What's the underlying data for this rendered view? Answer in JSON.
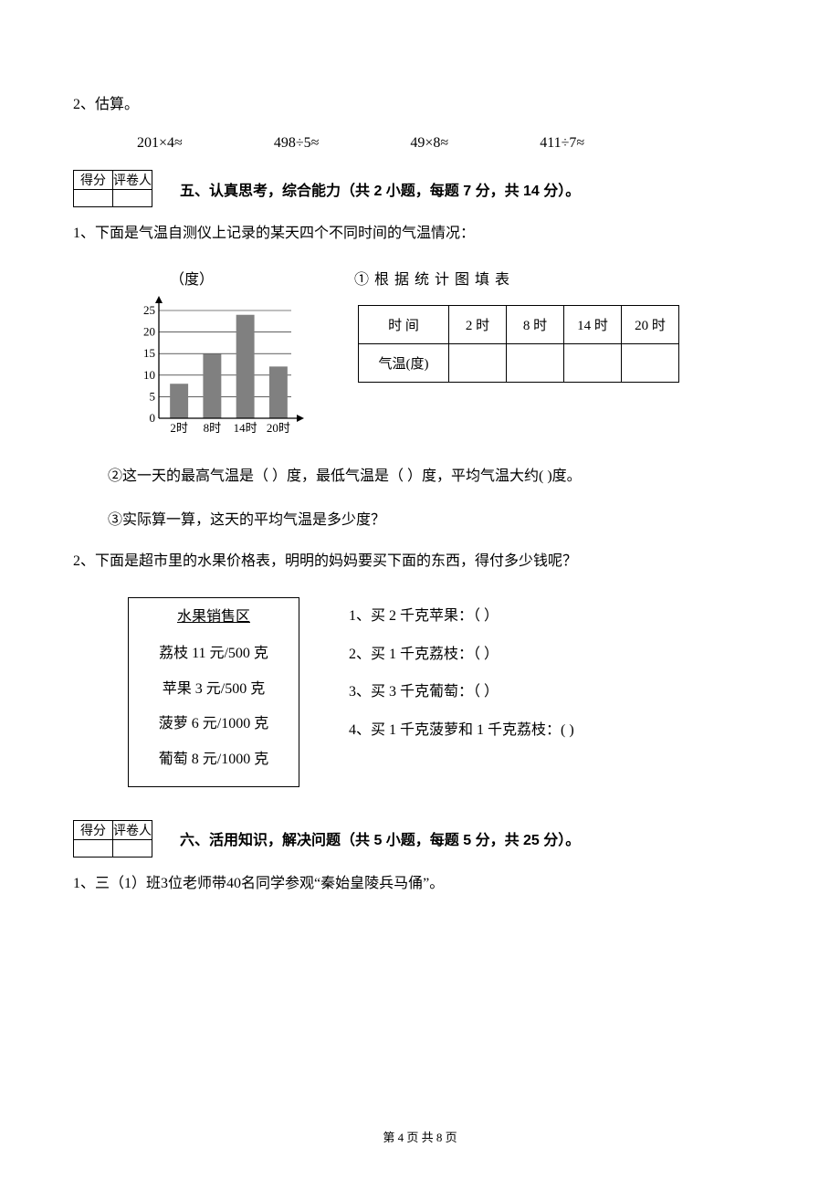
{
  "q2_label": "2、估算。",
  "calc": {
    "a": "201×4≈",
    "b": "498÷5≈",
    "c": "49×8≈",
    "d": "411÷7≈"
  },
  "score_header": {
    "c1": "得分",
    "c2": "评卷人"
  },
  "section5_title": "五、认真思考，综合能力（共 2 小题，每题 7 分，共 14 分）。",
  "q5_1_label": "1、下面是气温自测仪上记录的某天四个不同时间的气温情况：",
  "chart": {
    "type": "bar",
    "categories": [
      "2时",
      "8时",
      "14时",
      "20时"
    ],
    "values": [
      8,
      15,
      24,
      12
    ],
    "y_ticks": [
      0,
      5,
      10,
      15,
      20,
      25
    ],
    "y_unit": "（度）",
    "bar_color": "#808080",
    "axis_color": "#000000",
    "grid_color": "#000000",
    "background_color": "#ffffff",
    "x_fontsize": 13,
    "y_fontsize": 13,
    "ylim": [
      0,
      25
    ],
    "bar_width": 0.55
  },
  "table_title": "①根据统计图填表",
  "fill_table": {
    "row1": [
      "时    间",
      "2 时",
      "8 时",
      "14 时",
      "20 时"
    ],
    "row2": [
      "气温(度)",
      "",
      "",
      "",
      ""
    ]
  },
  "stmt2": "②这一天的最高气温是（        ）度，最低气温是（        ）度，平均气温大约(        )度。",
  "stmt3": "③实际算一算，这天的平均气温是多少度？",
  "q5_2_label": "2、下面是超市里的水果价格表，明明的妈妈要买下面的东西，得付多少钱呢？",
  "price_box": {
    "title": "水果销售区",
    "rows": [
      "荔枝 11 元/500 克",
      "苹果 3 元/500 克",
      "菠萝 6 元/1000 克",
      "葡萄 8 元/1000 克"
    ]
  },
  "price_q": {
    "a": "1、买 2 千克苹果：（            ）",
    "b": "2、买 1 千克荔枝：（            ）",
    "c": "3、买 3 千克葡萄：（            ）",
    "d": "4、买  1 千克菠萝和 1 千克荔枝：(        )"
  },
  "section6_title": "六、活用知识，解决问题（共 5 小题，每题 5 分，共 25 分）。",
  "q6_1_label": "1、三（1）班3位老师带40名同学参观“秦始皇陵兵马俑”。",
  "footer": "第 4 页 共 8 页"
}
